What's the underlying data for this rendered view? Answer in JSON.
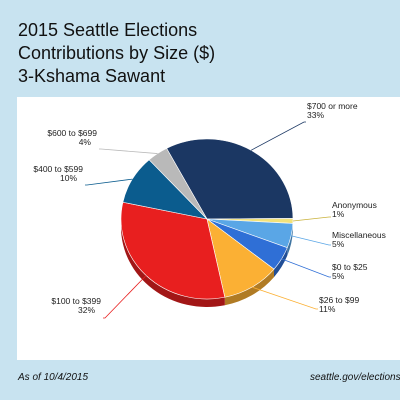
{
  "header": {
    "title_lines": [
      "2015 Seattle Elections",
      "Contributions by Size ($)",
      "3-Kshama Sawant"
    ]
  },
  "footer": {
    "as_of": "As of 10/4/2015",
    "source": "seattle.gov/elections"
  },
  "chart_data": {
    "type": "pie",
    "title": "2015 Seattle Elections Contributions by Size ($) 3-Kshama Sawant",
    "slices": [
      {
        "label": "$700 or more",
        "value": 33,
        "display": "33%",
        "color": "#1b3763"
      },
      {
        "label": "Anonymous",
        "value": 1,
        "display": "1%",
        "color": "#f2e27a"
      },
      {
        "label": "Miscellaneous",
        "value": 5,
        "display": "5%",
        "color": "#5aa6e6"
      },
      {
        "label": "$0 to $25",
        "value": 5,
        "display": "5%",
        "color": "#2f6fd6"
      },
      {
        "label": "$26 to $99",
        "value": 11,
        "display": "11%",
        "color": "#fbb034"
      },
      {
        "label": "$100 to $399",
        "value": 32,
        "display": "32%",
        "color": "#e81f1f"
      },
      {
        "label": "$400 to $599",
        "value": 10,
        "display": "10%",
        "color": "#0b5c8e"
      },
      {
        "label": "$600 to $699",
        "value": 4,
        "display": "4%",
        "color": "#b9b9b9"
      }
    ]
  }
}
